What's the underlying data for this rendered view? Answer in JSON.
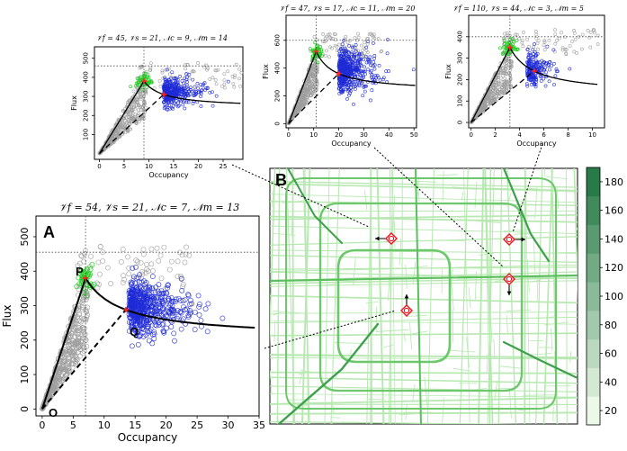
{
  "colors": {
    "free_points": "#9e9e9e",
    "peak_points": "#22cc22",
    "congested_points": "#1f2bd6",
    "fit_line": "#000000",
    "marker": "#ff2222",
    "map_background": "#ffffff",
    "road_light": "#b6e8b0",
    "road_dark": "#2a8a3c",
    "sensor_marker": "#e8141e"
  },
  "labels": {
    "occupancy": "Occupancy",
    "flux": "Flux",
    "panel_a": "A",
    "panel_b": "B",
    "point_p": "P",
    "point_q": "Q",
    "point_o": "O"
  },
  "chart_data": [
    {
      "id": "A",
      "type": "scatter",
      "title": "𝒱f = 54, 𝒱s = 21, 𝒩c = 7, 𝒩m = 13",
      "xlabel": "Occupancy",
      "ylabel": "Flux",
      "xlim": [
        -1,
        35
      ],
      "ylim": [
        -20,
        560
      ],
      "xticks": [
        0,
        5,
        10,
        15,
        20,
        25,
        30,
        35
      ],
      "yticks": [
        0,
        100,
        200,
        300,
        400,
        500
      ],
      "critical_occupancy": 7,
      "peak_flux": 455,
      "peak": [
        7,
        380
      ],
      "q_point": [
        13.5,
        288
      ],
      "free_speed": 54,
      "congested_speed": 21,
      "asymptote": 205,
      "curve_shape": 52,
      "congested_center": [
        14,
        295
      ],
      "congested_spread": [
        4.2,
        38
      ],
      "congested_count": 520
    },
    {
      "id": "B1",
      "type": "scatter",
      "title": "𝒱f = 45, 𝒱s = 21, 𝒩c = 9, 𝒩m = 14",
      "xlabel": "Occupancy",
      "ylabel": "Flux",
      "xlim": [
        -1,
        29
      ],
      "ylim": [
        -30,
        560
      ],
      "xticks": [
        0,
        5,
        10,
        15,
        20,
        25
      ],
      "yticks": [
        100,
        200,
        300,
        400,
        500
      ],
      "critical_occupancy": 9,
      "peak_flux": 460,
      "peak": [
        9,
        380
      ],
      "q_point": [
        13,
        310
      ],
      "free_speed": 45,
      "congested_speed": 21,
      "asymptote": 240,
      "curve_shape": 30,
      "congested_center": [
        13,
        320
      ],
      "congested_spread": [
        3.2,
        36
      ],
      "congested_count": 360
    },
    {
      "id": "B2",
      "type": "scatter",
      "title": "𝒱f = 47, 𝒱s = 17, 𝒩c = 11, 𝒩m = 20",
      "xlabel": "Occupancy",
      "ylabel": "Flux",
      "xlim": [
        -1,
        51
      ],
      "ylim": [
        -30,
        780
      ],
      "xticks": [
        0,
        10,
        20,
        30,
        40,
        50
      ],
      "yticks": [
        0,
        200,
        400,
        600
      ],
      "critical_occupancy": 11,
      "peak_flux": 600,
      "peak": [
        11,
        520
      ],
      "q_point": [
        20,
        360
      ],
      "free_speed": 47,
      "congested_speed": 17,
      "asymptote": 230,
      "curve_shape": 30,
      "congested_center": [
        20,
        380
      ],
      "congested_spread": [
        6,
        80
      ],
      "congested_count": 480
    },
    {
      "id": "B3",
      "type": "scatter",
      "title": "𝒱f = 110, 𝒱s = 44, 𝒩c = 3, 𝒩m = 5",
      "xlabel": "Occupancy",
      "ylabel": "Flux",
      "xlim": [
        -0.2,
        11
      ],
      "ylim": [
        -25,
        500
      ],
      "xticks": [
        0,
        2,
        4,
        6,
        8,
        10
      ],
      "yticks": [
        0,
        100,
        200,
        300,
        400
      ],
      "critical_occupancy": 3.2,
      "peak_flux": 400,
      "peak": [
        3.2,
        350
      ],
      "q_point": [
        5.2,
        240
      ],
      "free_speed": 110,
      "congested_speed": 44,
      "asymptote": 130,
      "curve_shape": 5,
      "congested_center": [
        4.6,
        250
      ],
      "congested_spread": [
        0.9,
        35
      ],
      "congested_count": 200
    },
    {
      "id": "colorbar",
      "type": "heatmap",
      "ticks": [
        20,
        40,
        60,
        80,
        100,
        120,
        140,
        160,
        180
      ],
      "range": [
        10,
        190
      ]
    }
  ]
}
